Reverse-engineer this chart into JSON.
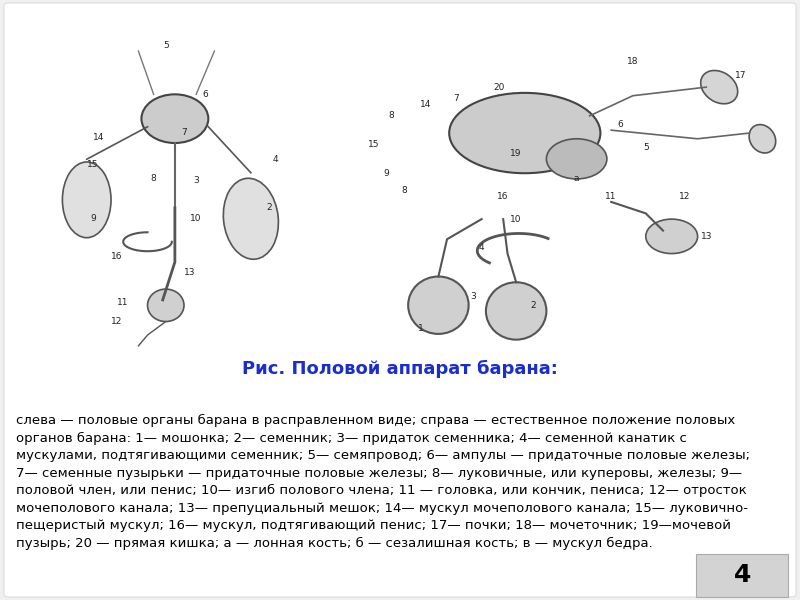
{
  "background_color": "#ffffff",
  "title": "Рис. Половой аппарат барана:",
  "title_color": "#1a2ecc",
  "title_fontsize": 13,
  "title_bold": true,
  "body_text": "слева — половые органы барана в расправленном виде; справа — естественное положение половых\nорганов барана: 1— мошонка; 2— семенник; 3— придаток семенника; 4— семенной канатик с\nмускулами, подтягивающими семенник; 5— семяпровод; 6— ампулы — придаточные половые железы;\n7— семенные пузырьки — придаточные половые железы; 8— луковичные, или куперовы, железы; 9—\nполовой член, или пенис; 10— изгиб полового члена; 11 — головка, или кончик, пениса; 12— отросток\nмочеполового канала; 13— препуциальный мешок; 14— мускул мочеполового канала; 15— луковично-\nпещеристый мускул; 16— мускул, подтягивающий пенис; 17— почки; 18— мочеточник; 19—мочевой\nпузырь; 20 — прямая кишка; а — лонная кость; б — сезалишная кость; в — мускул бедра.",
  "body_fontsize": 9.5,
  "body_color": "#000000",
  "page_number": "4",
  "page_number_bg": "#d3d3d3",
  "page_number_color": "#000000",
  "page_number_fontsize": 18,
  "image_region": [
    0.0,
    0.02,
    0.98,
    0.6
  ],
  "outer_bg": "#f0f0f0"
}
